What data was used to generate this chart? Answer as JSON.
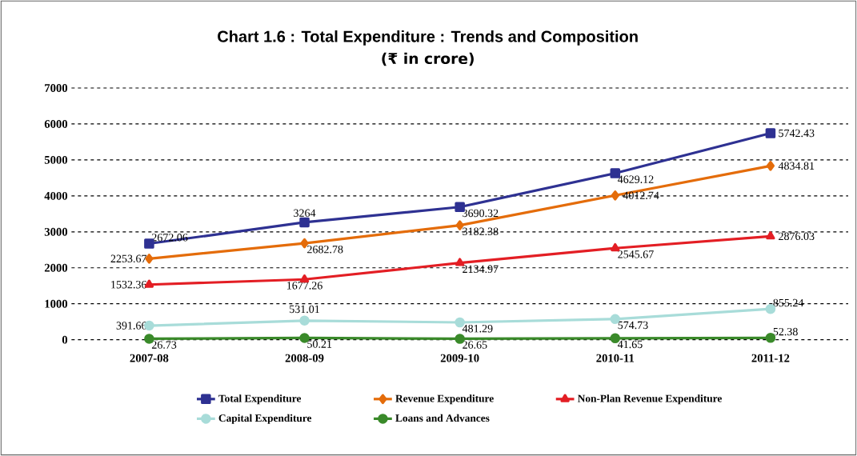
{
  "chart_data": {
    "type": "line",
    "title": "Chart 1.6 : Total Expenditure : Trends and Composition",
    "subtitle": "(₹ in crore)",
    "categories": [
      "2007-08",
      "2008-09",
      "2009-10",
      "2010-11",
      "2011-12"
    ],
    "series": [
      {
        "name": "Total Expenditure",
        "color": "#2e3192",
        "marker": "square",
        "values": [
          2672.06,
          3264,
          3690.32,
          4629.12,
          5742.43
        ]
      },
      {
        "name": "Revenue Expenditure",
        "color": "#e46c0a",
        "marker": "diamond",
        "values": [
          2253.67,
          2682.78,
          3182.38,
          4012.74,
          4834.81
        ]
      },
      {
        "name": "Non-Plan Revenue Expenditure",
        "color": "#e31e24",
        "marker": "triangle",
        "values": [
          1532.36,
          1677.26,
          2134.97,
          2545.67,
          2876.03
        ]
      },
      {
        "name": "Capital Expenditure",
        "color": "#a8dcd9",
        "marker": "circle",
        "values": [
          391.66,
          531.01,
          481.29,
          574.73,
          855.24
        ]
      },
      {
        "name": "Loans and Advances",
        "color": "#3a8a2a",
        "marker": "circle",
        "values": [
          26.73,
          50.21,
          26.65,
          41.65,
          52.38
        ]
      }
    ],
    "ylim": [
      0,
      7000
    ],
    "yticks": [
      0,
      1000,
      2000,
      3000,
      4000,
      5000,
      6000,
      7000
    ],
    "grid": "y",
    "legend": "bottom",
    "data_labels": true,
    "line_style": "solid"
  }
}
